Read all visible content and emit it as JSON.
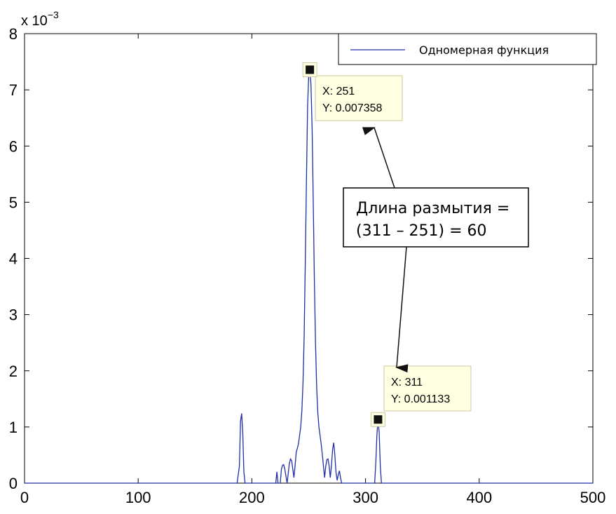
{
  "chart_data": {
    "type": "line",
    "xlim": [
      0,
      500
    ],
    "ylim": [
      0,
      8
    ],
    "x_ticks": [
      0,
      100,
      200,
      300,
      400,
      500
    ],
    "y_ticks": [
      0,
      1,
      2,
      3,
      4,
      5,
      6,
      7,
      8
    ],
    "y_exponent": {
      "base": "x 10",
      "power": "−3"
    },
    "grid": false,
    "legend_position": "top-right",
    "series": [
      {
        "name": "Одномерная функция",
        "color": "#1f2fa8",
        "points": [
          [
            0,
            0
          ],
          [
            187,
            0
          ],
          [
            189,
            0.3
          ],
          [
            190,
            1.1
          ],
          [
            191,
            1.24
          ],
          [
            192,
            0.9
          ],
          [
            193,
            0.2
          ],
          [
            194,
            0
          ],
          [
            221,
            0
          ],
          [
            222,
            0.2
          ],
          [
            223,
            0
          ],
          [
            225,
            0
          ],
          [
            226,
            0.25
          ],
          [
            227,
            0.32
          ],
          [
            228,
            0.33
          ],
          [
            229,
            0.25
          ],
          [
            230,
            0.12
          ],
          [
            231,
            0
          ],
          [
            233,
            0.35
          ],
          [
            234,
            0.43
          ],
          [
            235,
            0.4
          ],
          [
            236,
            0.25
          ],
          [
            237,
            0.1
          ],
          [
            238,
            0.3
          ],
          [
            239,
            0.55
          ],
          [
            240,
            0.62
          ],
          [
            241,
            0.7
          ],
          [
            242,
            0.85
          ],
          [
            243,
            1.0
          ],
          [
            244,
            1.3
          ],
          [
            245,
            1.8
          ],
          [
            246,
            2.6
          ],
          [
            247,
            3.9
          ],
          [
            248,
            5.4
          ],
          [
            249,
            6.7
          ],
          [
            250,
            7.25
          ],
          [
            251,
            7.358
          ],
          [
            252,
            7.1
          ],
          [
            253,
            6.3
          ],
          [
            254,
            5.0
          ],
          [
            255,
            3.6
          ],
          [
            256,
            2.5
          ],
          [
            257,
            1.7
          ],
          [
            258,
            1.25
          ],
          [
            259,
            1.0
          ],
          [
            260,
            0.85
          ],
          [
            261,
            0.7
          ],
          [
            262,
            0.5
          ],
          [
            263,
            0.3
          ],
          [
            264,
            0.1
          ],
          [
            265,
            0.3
          ],
          [
            266,
            0.42
          ],
          [
            267,
            0.43
          ],
          [
            268,
            0.3
          ],
          [
            269,
            0.1
          ],
          [
            270,
            0.3
          ],
          [
            271,
            0.6
          ],
          [
            272,
            0.72
          ],
          [
            273,
            0.5
          ],
          [
            274,
            0.2
          ],
          [
            275,
            0.05
          ],
          [
            276,
            0.15
          ],
          [
            277,
            0.22
          ],
          [
            278,
            0.1
          ],
          [
            279,
            0
          ],
          [
            308,
            0
          ],
          [
            309,
            0.35
          ],
          [
            310,
            0.85
          ],
          [
            311,
            1.133
          ],
          [
            312,
            0.9
          ],
          [
            313,
            0.3
          ],
          [
            314,
            0
          ],
          [
            500,
            0
          ]
        ]
      }
    ],
    "datatips": [
      {
        "x": 251,
        "y": 0.007358,
        "label_x": "X: 251",
        "label_y": "Y: 0.007358"
      },
      {
        "x": 311,
        "y": 0.001133,
        "label_x": "X: 311",
        "label_y": "Y: 0.001133"
      }
    ],
    "annotation": {
      "line1": "Длина размытия =",
      "line2": "(311 – 251) = 60"
    },
    "colors": {
      "line": "#1f2fa8",
      "tip_bg": "#ffffe1",
      "tip_border": "#ccc9a0",
      "marker": "#111111"
    }
  }
}
